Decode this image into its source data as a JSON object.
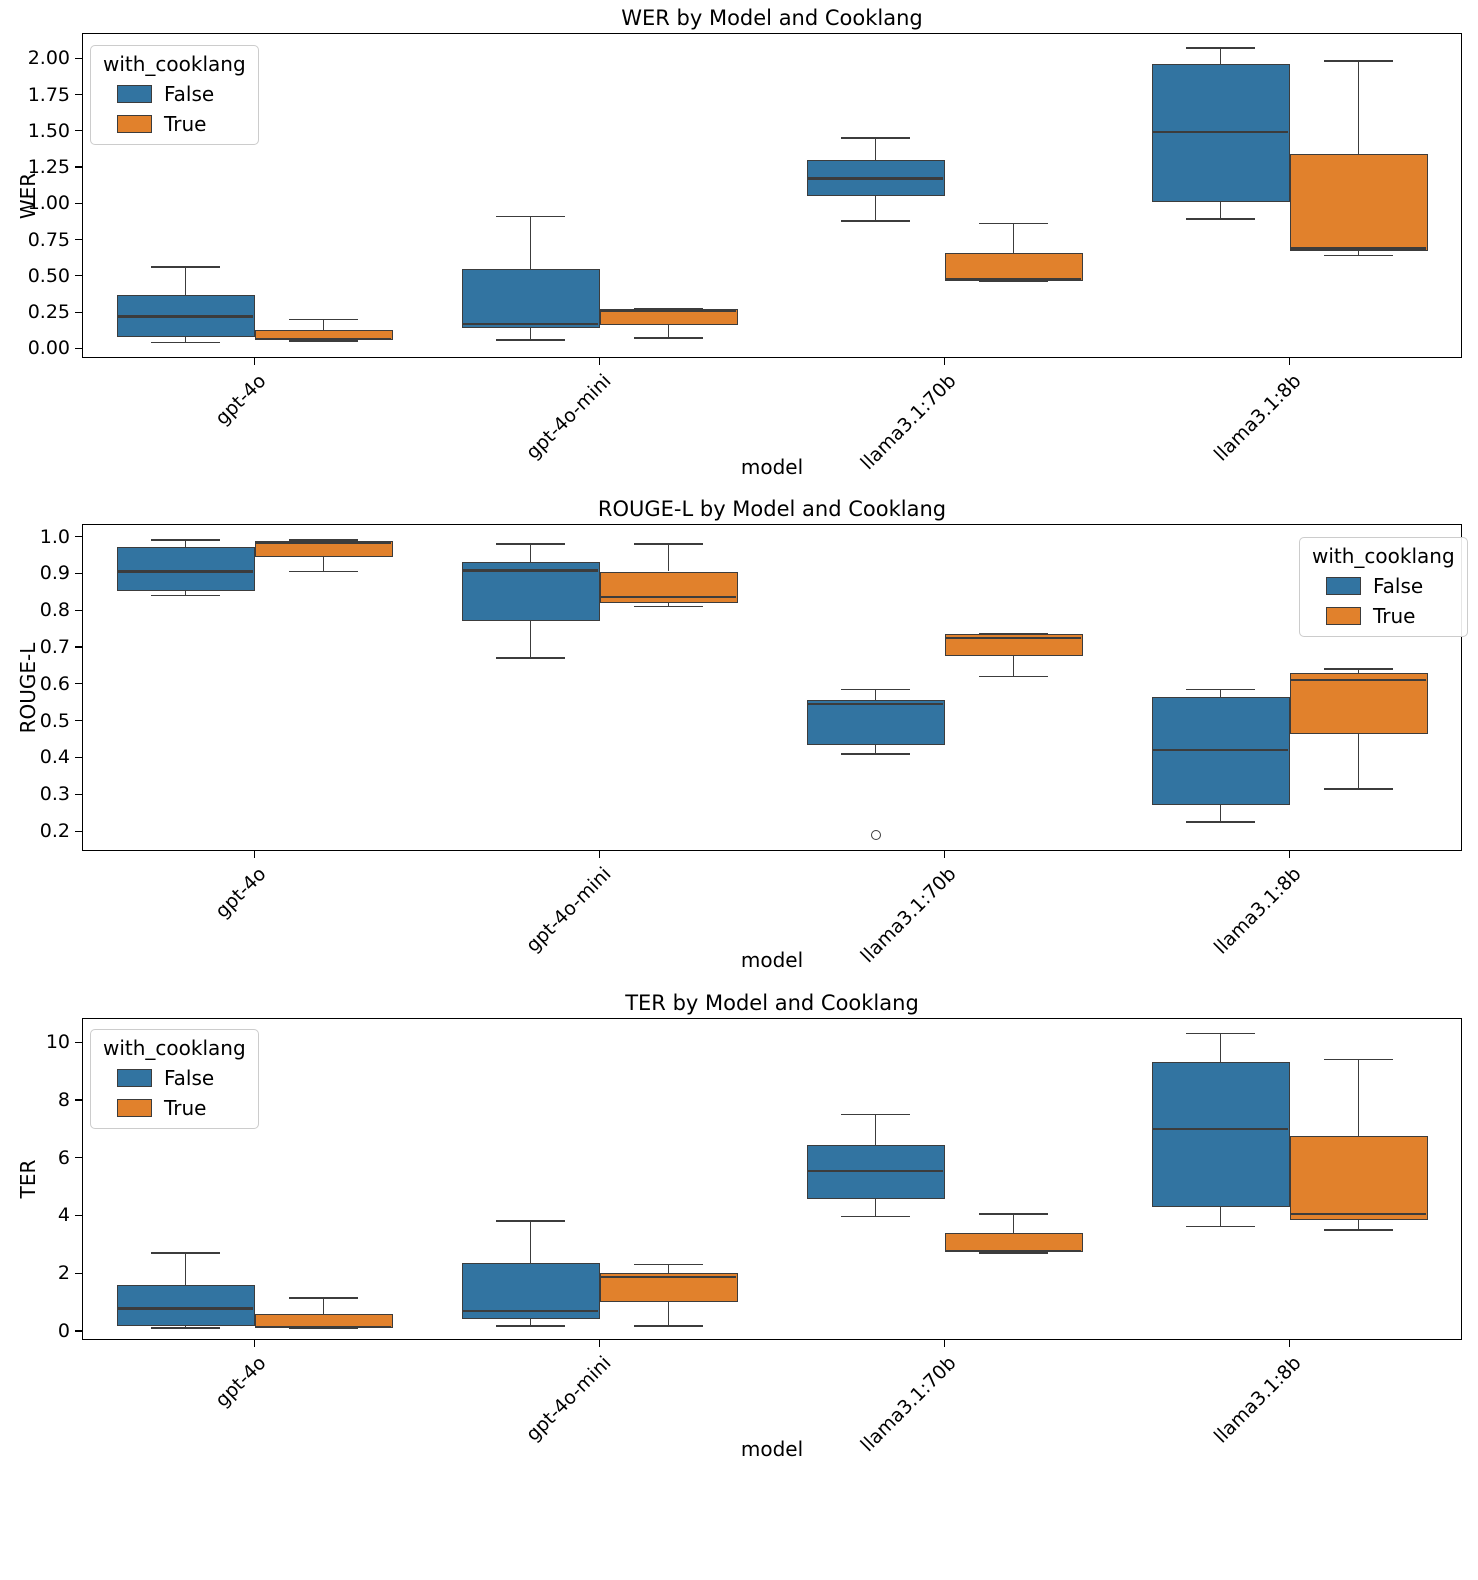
{
  "figure": {
    "background": "#ffffff"
  },
  "colors": {
    "false_series": "#3274a1",
    "true_series": "#e1812c",
    "box_edge": "#3c3c3c",
    "spine": "#000000"
  },
  "chart_data": [
    {
      "type": "box",
      "title": "WER by Model and Cooklang",
      "xlabel": "model",
      "ylabel": "WER",
      "categories": [
        "gpt-4o",
        "gpt-4o-mini",
        "llama3.1:70b",
        "llama3.1:8b"
      ],
      "ylim": [
        -0.066,
        2.174
      ],
      "yticks": [
        0,
        0.25,
        0.5,
        0.75,
        1.0,
        1.25,
        1.5,
        1.75,
        2.0
      ],
      "ytick_labels": [
        "0.00",
        "0.25",
        "0.50",
        "0.75",
        "1.00",
        "1.25",
        "1.50",
        "1.75",
        "2.00"
      ],
      "legend": {
        "title": "with_cooklang",
        "entries": [
          "False",
          "True"
        ],
        "position": "upper left"
      },
      "series": [
        {
          "name": "False",
          "color": "#3274a1",
          "boxes": [
            {
              "whislo": 0.04,
              "q1": 0.08,
              "med": 0.22,
              "q3": 0.37,
              "whishi": 0.56,
              "fliers": []
            },
            {
              "whislo": 0.06,
              "q1": 0.14,
              "med": 0.17,
              "q3": 0.55,
              "whishi": 0.91,
              "fliers": []
            },
            {
              "whislo": 0.88,
              "q1": 1.05,
              "med": 1.17,
              "q3": 1.3,
              "whishi": 1.45,
              "fliers": []
            },
            {
              "whislo": 0.89,
              "q1": 1.01,
              "med": 1.49,
              "q3": 1.96,
              "whishi": 2.07,
              "fliers": []
            }
          ]
        },
        {
          "name": "True",
          "color": "#e1812c",
          "boxes": [
            {
              "whislo": 0.05,
              "q1": 0.055,
              "med": 0.065,
              "q3": 0.125,
              "whishi": 0.2,
              "fliers": []
            },
            {
              "whislo": 0.07,
              "q1": 0.16,
              "med": 0.26,
              "q3": 0.275,
              "whishi": 0.275,
              "fliers": []
            },
            {
              "whislo": 0.46,
              "q1": 0.465,
              "med": 0.475,
              "q3": 0.66,
              "whishi": 0.86,
              "fliers": []
            },
            {
              "whislo": 0.64,
              "q1": 0.67,
              "med": 0.69,
              "q3": 1.34,
              "whishi": 1.98,
              "fliers": []
            }
          ]
        }
      ]
    },
    {
      "type": "box",
      "title": "ROUGE-L by Model and Cooklang",
      "xlabel": "model",
      "ylabel": "ROUGE-L",
      "categories": [
        "gpt-4o",
        "gpt-4o-mini",
        "llama3.1:70b",
        "llama3.1:8b"
      ],
      "ylim": [
        0.146,
        1.034
      ],
      "yticks": [
        0.2,
        0.3,
        0.4,
        0.5,
        0.6,
        0.7,
        0.8,
        0.9,
        1.0
      ],
      "ytick_labels": [
        "0.2",
        "0.3",
        "0.4",
        "0.5",
        "0.6",
        "0.7",
        "0.8",
        "0.9",
        "1.0"
      ],
      "legend": {
        "title": "with_cooklang",
        "entries": [
          "False",
          "True"
        ],
        "position": "upper right"
      },
      "series": [
        {
          "name": "False",
          "color": "#3274a1",
          "boxes": [
            {
              "whislo": 0.84,
              "q1": 0.851,
              "med": 0.905,
              "q3": 0.972,
              "whishi": 0.99,
              "fliers": []
            },
            {
              "whislo": 0.67,
              "q1": 0.77,
              "med": 0.908,
              "q3": 0.932,
              "whishi": 0.98,
              "fliers": []
            },
            {
              "whislo": 0.41,
              "q1": 0.435,
              "med": 0.545,
              "q3": 0.555,
              "whishi": 0.585,
              "fliers": [
                0.19
              ]
            },
            {
              "whislo": 0.225,
              "q1": 0.27,
              "med": 0.42,
              "q3": 0.565,
              "whishi": 0.585,
              "fliers": []
            }
          ]
        },
        {
          "name": "True",
          "color": "#e1812c",
          "boxes": [
            {
              "whislo": 0.905,
              "q1": 0.945,
              "med": 0.982,
              "q3": 0.988,
              "whishi": 0.99,
              "fliers": []
            },
            {
              "whislo": 0.81,
              "q1": 0.82,
              "med": 0.835,
              "q3": 0.905,
              "whishi": 0.98,
              "fliers": []
            },
            {
              "whislo": 0.62,
              "q1": 0.675,
              "med": 0.725,
              "q3": 0.735,
              "whishi": 0.735,
              "fliers": []
            },
            {
              "whislo": 0.315,
              "q1": 0.465,
              "med": 0.61,
              "q3": 0.63,
              "whishi": 0.64,
              "fliers": []
            }
          ]
        }
      ]
    },
    {
      "type": "box",
      "title": "TER by Model and Cooklang",
      "xlabel": "model",
      "ylabel": "TER",
      "categories": [
        "gpt-4o",
        "gpt-4o-mini",
        "llama3.1:70b",
        "llama3.1:8b"
      ],
      "ylim": [
        -0.312,
        10.84
      ],
      "yticks": [
        0,
        2,
        4,
        6,
        8,
        10
      ],
      "ytick_labels": [
        "0",
        "2",
        "4",
        "6",
        "8",
        "10"
      ],
      "legend": {
        "title": "with_cooklang",
        "entries": [
          "False",
          "True"
        ],
        "position": "upper left"
      },
      "series": [
        {
          "name": "False",
          "color": "#3274a1",
          "boxes": [
            {
              "whislo": 0.1,
              "q1": 0.17,
              "med": 0.78,
              "q3": 1.6,
              "whishi": 2.7,
              "fliers": []
            },
            {
              "whislo": 0.18,
              "q1": 0.4,
              "med": 0.7,
              "q3": 2.37,
              "whishi": 3.8,
              "fliers": []
            },
            {
              "whislo": 3.97,
              "q1": 4.58,
              "med": 5.55,
              "q3": 6.45,
              "whishi": 7.5,
              "fliers": []
            },
            {
              "whislo": 3.62,
              "q1": 4.3,
              "med": 7.0,
              "q3": 9.3,
              "whishi": 10.3,
              "fliers": []
            }
          ]
        },
        {
          "name": "True",
          "color": "#e1812c",
          "boxes": [
            {
              "whislo": 0.08,
              "q1": 0.1,
              "med": 0.14,
              "q3": 0.6,
              "whishi": 1.15,
              "fliers": []
            },
            {
              "whislo": 0.17,
              "q1": 1.0,
              "med": 1.88,
              "q3": 2.02,
              "whishi": 2.3,
              "fliers": []
            },
            {
              "whislo": 2.7,
              "q1": 2.72,
              "med": 2.78,
              "q3": 3.4,
              "whishi": 4.05,
              "fliers": []
            },
            {
              "whislo": 3.5,
              "q1": 3.85,
              "med": 4.05,
              "q3": 6.75,
              "whishi": 9.4,
              "fliers": []
            }
          ]
        }
      ]
    }
  ]
}
